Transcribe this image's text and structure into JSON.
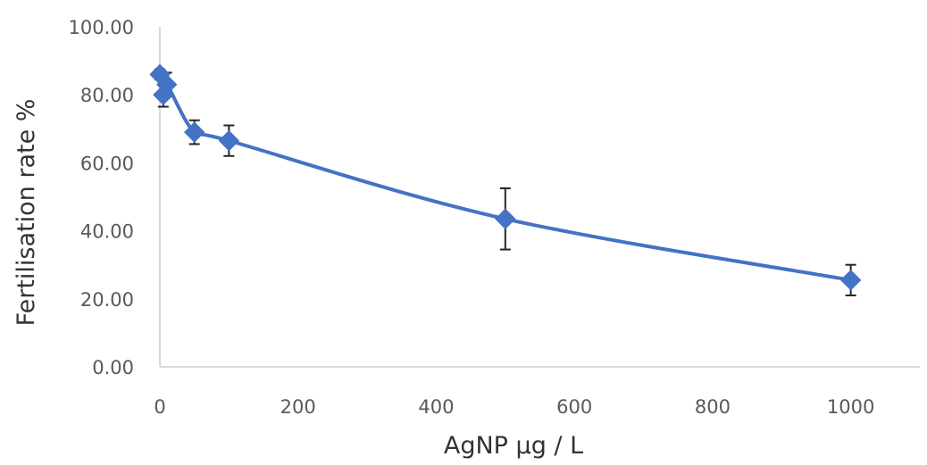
{
  "chart_data": {
    "type": "line",
    "title": "",
    "xlabel": "AgNP µg / L",
    "ylabel": "Fertilisation rate %",
    "xlim": [
      0,
      1100
    ],
    "ylim": [
      0,
      100
    ],
    "x_ticks": [
      "0",
      "200",
      "400",
      "600",
      "800",
      "1000"
    ],
    "y_ticks": [
      "0.00",
      "20.00",
      "40.00",
      "60.00",
      "80.00",
      "100.00"
    ],
    "grid": false,
    "legend": "none",
    "series": [
      {
        "color": "#4472C4",
        "marker": "diamond",
        "smooth": true,
        "x": [
          0,
          5,
          10,
          50,
          100,
          500,
          1000
        ],
        "y": [
          86.0,
          80.0,
          83.0,
          69.0,
          66.5,
          43.5,
          25.5
        ],
        "error": [
          1.5,
          3.5,
          3.5,
          3.5,
          4.5,
          9.0,
          4.5
        ]
      }
    ]
  }
}
